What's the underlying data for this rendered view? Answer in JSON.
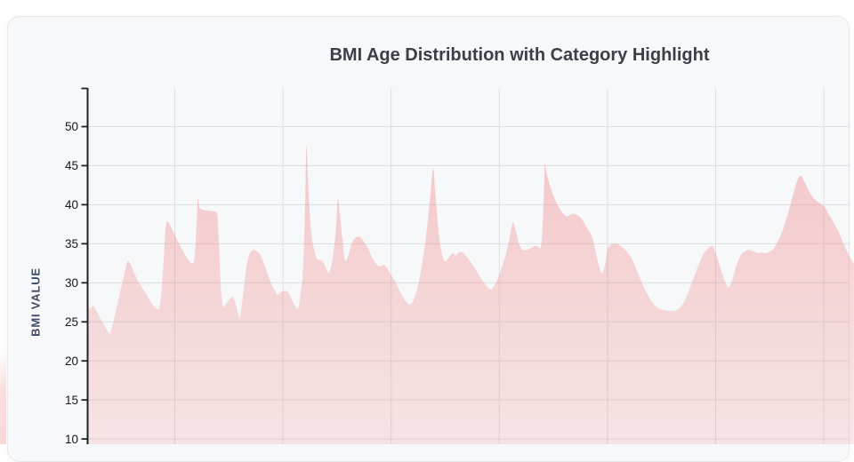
{
  "header": {
    "title": "BMI Age Distribution with Category Highlight"
  },
  "colors": {
    "area": "#F08080",
    "card_background": "#f7f8fa",
    "card_border": "#e6e8ec",
    "grid": "#dcdee2",
    "axis": "#202226",
    "title_text": "#3a3f48",
    "y_axis_title_text": "#3f4b66",
    "tick_label_text": "#17181a"
  },
  "chart_data": {
    "type": "area",
    "title": "BMI Age Distribution with Category Highlight",
    "xlabel": "",
    "ylabel": "BMI VALUE",
    "series_name": "BMI",
    "grid": true,
    "legend": "none",
    "x_tick_labels_visible": false,
    "y_ticks": [
      50,
      45,
      40,
      35,
      30,
      25,
      20,
      15,
      10
    ],
    "y_axis_top": 55,
    "y_baseline_below_view": true,
    "area_color": "#F08080",
    "points": [
      [
        99,
        26.6
      ],
      [
        102,
        26.85
      ],
      [
        105,
        27.0
      ],
      [
        108,
        26.5
      ],
      [
        112,
        25.6
      ],
      [
        116,
        24.8
      ],
      [
        120,
        24.0
      ],
      [
        123,
        23.5
      ],
      [
        126,
        24.4
      ],
      [
        129,
        25.8
      ],
      [
        132,
        27.3
      ],
      [
        135,
        28.8
      ],
      [
        138,
        30.3
      ],
      [
        141,
        31.8
      ],
      [
        144,
        32.8
      ],
      [
        147,
        32.3
      ],
      [
        151,
        31.2
      ],
      [
        155,
        30.3
      ],
      [
        159,
        29.5
      ],
      [
        163,
        28.8
      ],
      [
        167,
        28.0
      ],
      [
        171,
        27.3
      ],
      [
        175,
        26.8
      ],
      [
        178,
        26.6
      ],
      [
        181,
        28.3
      ],
      [
        184,
        33.0
      ],
      [
        186,
        36.8
      ],
      [
        188,
        37.9
      ],
      [
        191,
        37.4
      ],
      [
        194,
        36.7
      ],
      [
        197,
        36.0
      ],
      [
        201,
        35.1
      ],
      [
        205,
        34.2
      ],
      [
        209,
        33.4
      ],
      [
        212,
        32.9
      ],
      [
        215,
        32.5
      ],
      [
        217,
        32.5
      ],
      [
        219,
        33.6
      ],
      [
        221,
        37.5
      ],
      [
        222.5,
        40.9
      ],
      [
        224,
        39.7
      ],
      [
        228,
        39.35
      ],
      [
        233,
        39.25
      ],
      [
        238,
        39.2
      ],
      [
        242,
        39.1
      ],
      [
        244,
        38.8
      ],
      [
        246,
        35.5
      ],
      [
        248,
        30.0
      ],
      [
        251,
        26.9
      ],
      [
        254,
        27.3
      ],
      [
        258,
        27.9
      ],
      [
        261,
        28.2
      ],
      [
        264,
        27.6
      ],
      [
        267,
        26.4
      ],
      [
        269.5,
        25.6
      ],
      [
        272,
        27.3
      ],
      [
        275,
        30.3
      ],
      [
        278,
        32.7
      ],
      [
        281,
        33.8
      ],
      [
        285,
        34.2
      ],
      [
        289,
        34.0
      ],
      [
        293,
        33.5
      ],
      [
        297,
        32.4
      ],
      [
        301,
        31.1
      ],
      [
        305,
        29.9
      ],
      [
        309,
        29.0
      ],
      [
        312,
        28.5
      ],
      [
        315,
        28.7
      ],
      [
        318,
        28.95
      ],
      [
        321,
        28.95
      ],
      [
        324,
        28.8
      ],
      [
        327,
        28.1
      ],
      [
        330,
        27.4
      ],
      [
        333,
        26.85
      ],
      [
        335,
        26.7
      ],
      [
        338,
        28.8
      ],
      [
        341,
        32.6
      ],
      [
        343,
        40.0
      ],
      [
        344.5,
        47.6
      ],
      [
        346,
        43.5
      ],
      [
        349,
        37.5
      ],
      [
        352,
        34.8
      ],
      [
        355,
        33.4
      ],
      [
        358,
        32.95
      ],
      [
        361,
        32.85
      ],
      [
        364,
        32.5
      ],
      [
        367,
        31.7
      ],
      [
        369,
        31.3
      ],
      [
        372,
        32.0
      ],
      [
        375,
        34.0
      ],
      [
        378,
        37.5
      ],
      [
        380,
        40.8
      ],
      [
        382,
        38.8
      ],
      [
        385,
        35.5
      ],
      [
        388,
        32.8
      ],
      [
        391,
        33.3
      ],
      [
        395,
        34.9
      ],
      [
        399,
        35.7
      ],
      [
        403,
        35.9
      ],
      [
        407,
        35.6
      ],
      [
        411,
        34.9
      ],
      [
        415,
        34.1
      ],
      [
        419,
        33.1
      ],
      [
        423,
        32.4
      ],
      [
        427,
        32.1
      ],
      [
        431,
        32.3
      ],
      [
        435,
        31.9
      ],
      [
        439,
        31.1
      ],
      [
        443,
        30.4
      ],
      [
        447,
        29.5
      ],
      [
        451,
        28.6
      ],
      [
        455,
        27.8
      ],
      [
        458,
        27.4
      ],
      [
        461,
        27.2
      ],
      [
        464,
        27.6
      ],
      [
        468,
        28.8
      ],
      [
        472,
        30.8
      ],
      [
        476,
        33.5
      ],
      [
        480,
        37.0
      ],
      [
        484,
        41.5
      ],
      [
        487,
        44.7
      ],
      [
        489,
        42.0
      ],
      [
        492,
        37.8
      ],
      [
        495,
        34.8
      ],
      [
        498,
        33.2
      ],
      [
        500,
        32.7
      ],
      [
        503,
        33.0
      ],
      [
        507,
        33.6
      ],
      [
        510,
        33.8
      ],
      [
        512,
        33.5
      ],
      [
        515,
        33.8
      ],
      [
        518,
        33.95
      ],
      [
        521,
        33.8
      ],
      [
        525,
        33.3
      ],
      [
        529,
        32.7
      ],
      [
        533,
        32.0
      ],
      [
        537,
        31.3
      ],
      [
        541,
        30.5
      ],
      [
        545,
        29.9
      ],
      [
        549,
        29.3
      ],
      [
        552,
        29.2
      ],
      [
        555,
        29.5
      ],
      [
        559,
        30.4
      ],
      [
        563,
        31.6
      ],
      [
        567,
        33.0
      ],
      [
        571,
        34.8
      ],
      [
        574,
        36.5
      ],
      [
        577,
        37.75
      ],
      [
        580,
        36.5
      ],
      [
        583,
        35.1
      ],
      [
        586,
        34.4
      ],
      [
        590,
        34.2
      ],
      [
        594,
        34.3
      ],
      [
        598,
        34.5
      ],
      [
        602,
        34.75
      ],
      [
        605,
        34.6
      ],
      [
        607,
        34.4
      ],
      [
        609,
        35.5
      ],
      [
        611,
        40.0
      ],
      [
        612.5,
        45.25
      ],
      [
        614,
        44.3
      ],
      [
        617,
        42.9
      ],
      [
        621,
        41.5
      ],
      [
        625,
        40.4
      ],
      [
        629,
        39.5
      ],
      [
        633,
        38.9
      ],
      [
        637,
        38.5
      ],
      [
        641,
        38.7
      ],
      [
        645,
        38.85
      ],
      [
        649,
        38.65
      ],
      [
        653,
        38.3
      ],
      [
        657,
        37.6
      ],
      [
        661,
        36.8
      ],
      [
        665,
        36.1
      ],
      [
        668,
        34.8
      ],
      [
        671,
        33.2
      ],
      [
        674,
        31.9
      ],
      [
        677,
        31.2
      ],
      [
        680,
        32.2
      ],
      [
        683,
        34.3
      ],
      [
        686,
        34.8
      ],
      [
        690,
        35.0
      ],
      [
        694,
        34.95
      ],
      [
        698,
        34.7
      ],
      [
        702,
        34.3
      ],
      [
        706,
        33.8
      ],
      [
        710,
        33.1
      ],
      [
        714,
        32.1
      ],
      [
        718,
        31.0
      ],
      [
        722,
        29.9
      ],
      [
        727,
        28.7
      ],
      [
        732,
        27.7
      ],
      [
        737,
        27.0
      ],
      [
        742,
        26.65
      ],
      [
        747,
        26.5
      ],
      [
        752,
        26.4
      ],
      [
        757,
        26.4
      ],
      [
        762,
        26.6
      ],
      [
        767,
        27.2
      ],
      [
        772,
        28.3
      ],
      [
        777,
        29.8
      ],
      [
        782,
        31.3
      ],
      [
        787,
        32.8
      ],
      [
        792,
        33.9
      ],
      [
        796,
        34.4
      ],
      [
        799,
        34.65
      ],
      [
        801,
        34.7
      ],
      [
        804,
        34.0
      ],
      [
        808,
        32.6
      ],
      [
        812,
        31.1
      ],
      [
        816,
        29.9
      ],
      [
        819,
        29.4
      ],
      [
        822,
        30.0
      ],
      [
        825,
        31.1
      ],
      [
        829,
        32.6
      ],
      [
        833,
        33.6
      ],
      [
        837,
        34.0
      ],
      [
        841,
        34.2
      ],
      [
        845,
        34.1
      ],
      [
        849,
        33.9
      ],
      [
        853,
        33.8
      ],
      [
        857,
        33.85
      ],
      [
        861,
        33.8
      ],
      [
        865,
        34.0
      ],
      [
        869,
        34.3
      ],
      [
        873,
        35.0
      ],
      [
        877,
        35.9
      ],
      [
        881,
        37.1
      ],
      [
        885,
        38.6
      ],
      [
        889,
        40.2
      ],
      [
        893,
        41.9
      ],
      [
        897,
        43.3
      ],
      [
        900,
        43.7
      ],
      [
        903,
        43.2
      ],
      [
        907,
        42.3
      ],
      [
        911,
        41.4
      ],
      [
        915,
        40.8
      ],
      [
        919,
        40.4
      ],
      [
        923,
        40.05
      ],
      [
        927,
        39.7
      ],
      [
        931,
        38.9
      ],
      [
        935,
        38.15
      ],
      [
        939,
        37.3
      ],
      [
        943,
        36.5
      ],
      [
        947,
        35.3
      ],
      [
        951,
        34.3
      ],
      [
        955,
        33.4
      ],
      [
        960,
        32.4
      ]
    ]
  }
}
